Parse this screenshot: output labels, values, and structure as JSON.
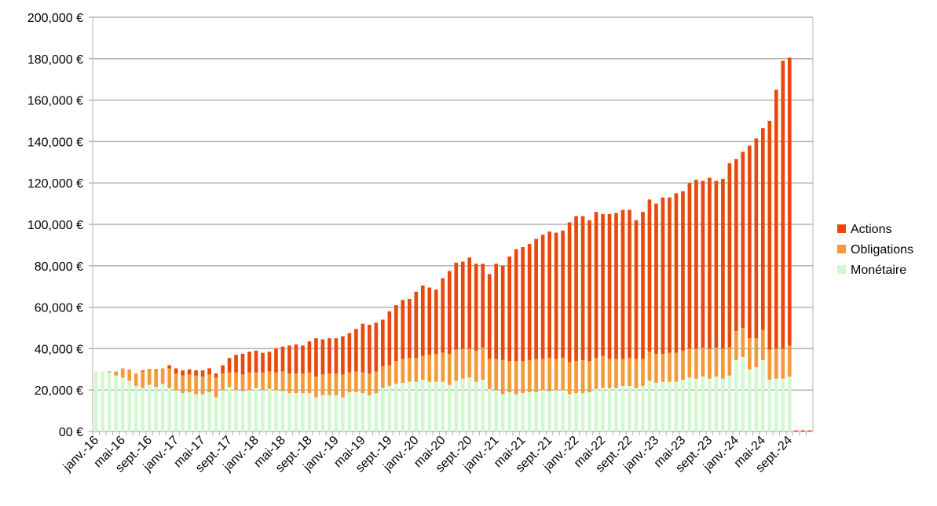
{
  "chart_data": {
    "type": "bar",
    "stacked": true,
    "title": "",
    "xlabel": "",
    "ylabel": "",
    "ylim": [
      0,
      200000
    ],
    "y_ticks": [
      0,
      20000,
      40000,
      60000,
      80000,
      100000,
      120000,
      140000,
      160000,
      180000,
      200000
    ],
    "y_tick_labels": [
      "00 €",
      "20,000 €",
      "40,000 €",
      "60,000 €",
      "80,000 €",
      "100,000 €",
      "120,000 €",
      "140,000 €",
      "160,000 €",
      "180,000 €",
      "200,000 €"
    ],
    "grid": true,
    "legend_position": "right",
    "start_month": "2016-01",
    "month_count": 108,
    "x_tick_labels": [
      "janv.-16",
      "mai-16",
      "sept.-16",
      "janv.-17",
      "mai-17",
      "sept.-17",
      "janv.-18",
      "mai-18",
      "sept.-18",
      "janv.-19",
      "mai-19",
      "sept.-19",
      "janv.-20",
      "mai-20",
      "sept.-20",
      "janv.-21",
      "mai-21",
      "sept.-21",
      "janv.-22",
      "mai-22",
      "sept.-22",
      "janv.-23",
      "mai-23",
      "sept.-23",
      "janv.-24",
      "mai-24",
      "sept.-24"
    ],
    "units": "thousand €",
    "series": [
      {
        "name": "Actions",
        "color": "#e8490f",
        "note": "total minus Monétaire minus Obligations"
      },
      {
        "name": "Obligations",
        "color": "#f29b38"
      },
      {
        "name": "Monétaire",
        "color": "#d3f8d0"
      }
    ],
    "monetaire": [
      29,
      29,
      28.5,
      27,
      26,
      24.5,
      22,
      21,
      22.5,
      21.5,
      23,
      21,
      20,
      18.5,
      19,
      18,
      18,
      19,
      16.5,
      20,
      21.5,
      20,
      19.5,
      20,
      21,
      20,
      20.5,
      20,
      19.5,
      18.5,
      18.5,
      18.5,
      18.5,
      16.5,
      17.5,
      17.5,
      17.5,
      16.5,
      19,
      19,
      18.5,
      17.5,
      18.5,
      21,
      22,
      23,
      23.5,
      24,
      24,
      25,
      24,
      24,
      24,
      22.5,
      24.5,
      25.5,
      26,
      24,
      25,
      20.5,
      20,
      18,
      19,
      18,
      18.5,
      19,
      19,
      20,
      19.5,
      20,
      20,
      18,
      18.5,
      18.5,
      19,
      20.5,
      21,
      21,
      21,
      22,
      22,
      21,
      22,
      24.5,
      23.5,
      24,
      24,
      24,
      25,
      26,
      25.5,
      26.5,
      25.5,
      26.5,
      25.5,
      27,
      34.5,
      36,
      30,
      31,
      34.5,
      25,
      25.5,
      25.5,
      26.5,
      0,
      0,
      0
    ],
    "obligations": [
      0,
      0,
      0.5,
      2,
      4.5,
      5.5,
      6,
      8,
      7,
      8,
      7.5,
      9.5,
      8,
      8.5,
      8.5,
      9,
      8.5,
      8.5,
      9.5,
      8,
      7,
      8.5,
      8,
      8.5,
      7.5,
      8.5,
      8.5,
      8.5,
      9.5,
      9.5,
      9.5,
      9.5,
      10,
      10,
      10,
      10.5,
      10.5,
      11,
      9.5,
      10,
      10,
      10.5,
      10.5,
      10.5,
      10,
      11,
      11.5,
      11.5,
      11.5,
      11.5,
      13,
      13.5,
      14,
      15,
      15,
      14.5,
      14,
      15,
      15.5,
      14.5,
      15,
      16.5,
      15,
      16,
      15.5,
      15.5,
      16,
      15,
      16,
      15,
      15.5,
      15.5,
      15.5,
      16,
      15,
      15,
      15.5,
      14,
      14,
      13,
      13.5,
      14,
      13,
      14,
      14,
      13.5,
      14,
      14,
      14,
      14,
      14.5,
      14,
      14.5,
      14,
      14.5,
      13.5,
      14,
      14,
      15,
      14,
      14.5,
      14.5,
      14.5,
      14.5,
      15,
      0,
      0,
      0
    ],
    "total": [
      29,
      29,
      29,
      29,
      30,
      29.5,
      28,
      29.5,
      30,
      30,
      30.5,
      32,
      30.5,
      29.5,
      30,
      29.5,
      29.5,
      30.5,
      28,
      32,
      35.5,
      37,
      37.5,
      38.5,
      39,
      38,
      38.5,
      40,
      41,
      41.5,
      42,
      41.5,
      43.5,
      45,
      44.5,
      45,
      45,
      46,
      47.5,
      49.5,
      52,
      51.5,
      52.5,
      54,
      58,
      61,
      63.5,
      64,
      67.5,
      70.5,
      69.5,
      68.5,
      74,
      77.5,
      81.5,
      82,
      84,
      81,
      81,
      76,
      81,
      80,
      84.5,
      88,
      89,
      90.5,
      93,
      95,
      96.5,
      96,
      97,
      101,
      104,
      104,
      102,
      106,
      105,
      105,
      105.5,
      107,
      107,
      102,
      106,
      112,
      110,
      113,
      113,
      115,
      116,
      120,
      121.5,
      121,
      122.5,
      121,
      122,
      129.5,
      131.5,
      135,
      138,
      141.5,
      146.5,
      150,
      165,
      179,
      180.5,
      0,
      0,
      0
    ]
  }
}
